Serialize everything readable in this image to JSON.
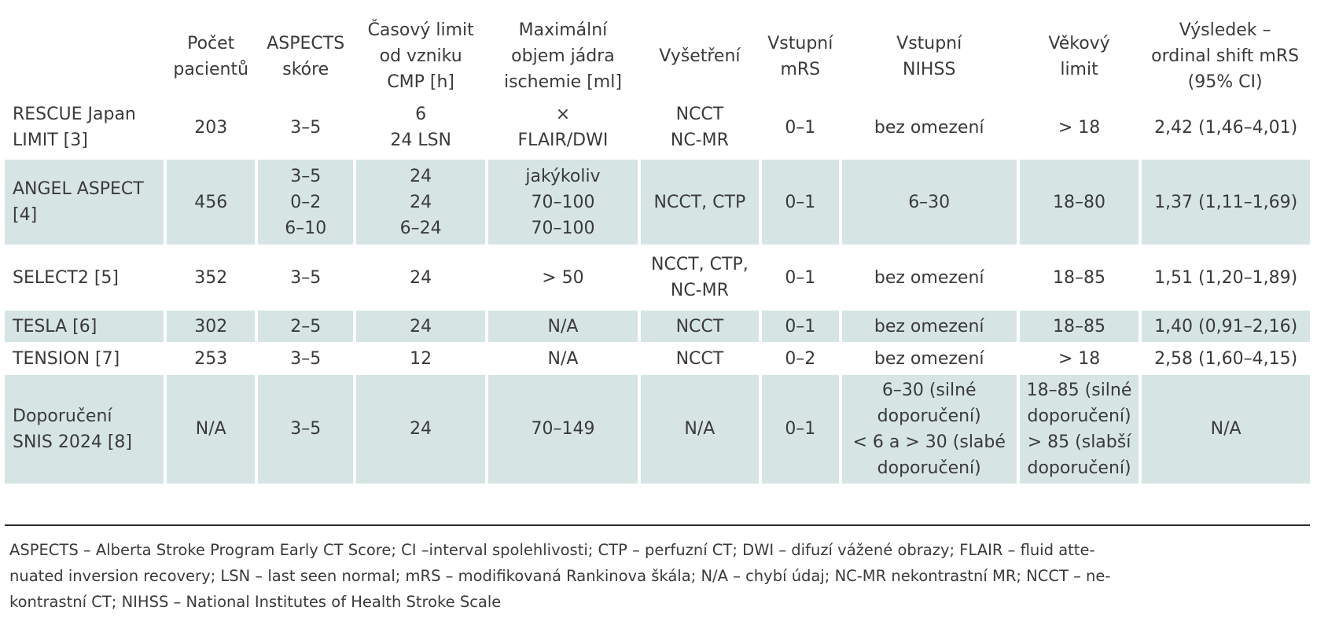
{
  "table": {
    "headers": [
      [
        ""
      ],
      [
        "Počet",
        "pacientů"
      ],
      [
        "ASPECTS",
        "skóre"
      ],
      [
        "Časový limit",
        "od vzniku",
        "CMP [h]"
      ],
      [
        "Maximální",
        "objem jádra",
        "ischemie [ml]"
      ],
      [
        "Vyšetření"
      ],
      [
        "Vstupní",
        "mRS"
      ],
      [
        "Vstupní",
        "NIHSS"
      ],
      [
        "Věkový",
        "limit"
      ],
      [
        "Výsledek –",
        "ordinal shift mRS",
        "(95% CI)"
      ]
    ],
    "rows": [
      {
        "name": [
          "RESCUE Japan",
          "LIMIT [3]"
        ],
        "cells": [
          [
            "203"
          ],
          [
            "3–5"
          ],
          [
            "6",
            "24 LSN"
          ],
          [
            "×",
            "FLAIR/DWI"
          ],
          [
            "NCCT",
            "NC-MR"
          ],
          [
            "0–1"
          ],
          [
            "bez omezení"
          ],
          [
            "> 18"
          ],
          [
            "2,42 (1,46–4,01)"
          ]
        ]
      },
      {
        "name": [
          "ANGEL ASPECT",
          "[4]"
        ],
        "cells": [
          [
            "456"
          ],
          [
            "3–5",
            "0–2",
            "6–10"
          ],
          [
            "24",
            "24",
            "6–24"
          ],
          [
            "jakýkoliv",
            "70–100",
            "70–100"
          ],
          [
            "NCCT, CTP"
          ],
          [
            "0–1"
          ],
          [
            "6–30"
          ],
          [
            "18–80"
          ],
          [
            "1,37 (1,11–1,69)"
          ]
        ]
      },
      {
        "name": [
          "SELECT2 [5]"
        ],
        "cells": [
          [
            "352"
          ],
          [
            "3–5"
          ],
          [
            "24"
          ],
          [
            "> 50"
          ],
          [
            "NCCT, CTP,",
            "NC-MR"
          ],
          [
            "0–1"
          ],
          [
            "bez omezení"
          ],
          [
            "18–85"
          ],
          [
            "1,51 (1,20–1,89)"
          ]
        ]
      },
      {
        "name": [
          "TESLA [6]"
        ],
        "cells": [
          [
            "302"
          ],
          [
            "2–5"
          ],
          [
            "24"
          ],
          [
            "N/A"
          ],
          [
            "NCCT"
          ],
          [
            "0–1"
          ],
          [
            "bez omezení"
          ],
          [
            "18–85"
          ],
          [
            "1,40 (0,91–2,16)"
          ]
        ]
      },
      {
        "name": [
          "TENSION [7]"
        ],
        "cells": [
          [
            "253"
          ],
          [
            "3–5"
          ],
          [
            "12"
          ],
          [
            "N/A"
          ],
          [
            "NCCT"
          ],
          [
            "0–2"
          ],
          [
            "bez omezení"
          ],
          [
            "> 18"
          ],
          [
            "2,58 (1,60–4,15)"
          ]
        ]
      },
      {
        "name": [
          "Doporučení",
          "SNIS 2024 [8]"
        ],
        "cells": [
          [
            "N/A"
          ],
          [
            "3–5"
          ],
          [
            "24"
          ],
          [
            "70–149"
          ],
          [
            "N/A"
          ],
          [
            "0–1"
          ],
          [
            "6–30 (silné",
            "doporučení)",
            "< 6 a > 30 (slabé",
            "doporučení)"
          ],
          [
            "18–85 (silné",
            "doporučení)",
            "> 85 (slabší",
            "doporučení)"
          ],
          [
            "N/A"
          ]
        ]
      }
    ]
  },
  "footnote": [
    "ASPECTS – Alberta Stroke Program Early CT Score; CI –interval spolehlivosti; CTP – perfuzní CT; DWI – difuzí vážené obrazy; FLAIR – fluid atte-",
    "nuated inversion recovery; LSN – last seen normal; mRS – modifikovaná Rankinova škála; N/A – chybí údaj; NC-MR nekontrastní MR; NCCT – ne-",
    "kontrastní CT; NIHSS – National Institutes of Health Stroke Scale"
  ],
  "colors": {
    "row_tint": "#d6e5e3",
    "rule": "#2e2e2e",
    "text": "#3a3a3a"
  }
}
